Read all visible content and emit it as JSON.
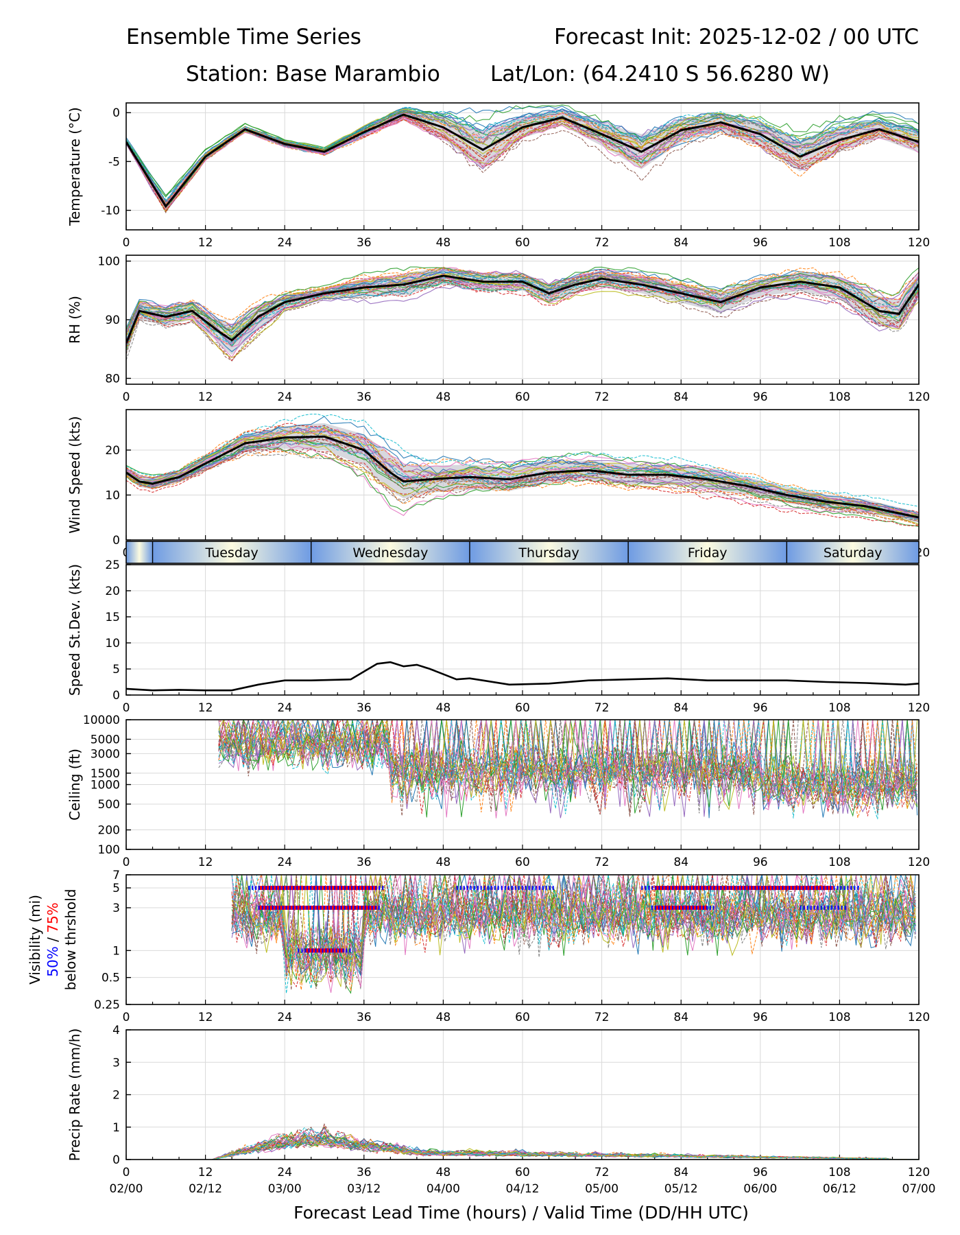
{
  "header": {
    "title": "Ensemble Time Series",
    "init": "Forecast Init: 2025-12-02 / 00 UTC",
    "station": "Station: Base Marambio",
    "latlon": "Lat/Lon: (64.2410 S 56.6280 W)"
  },
  "colors": {
    "mean": "#000000",
    "vis_50": "#0000ff",
    "vis_75": "#ff0000",
    "grid": "#d9d9d9",
    "spread": "#c8c8d0",
    "members": [
      "#1f77b4",
      "#ff7f0e",
      "#2ca02c",
      "#d62728",
      "#9467bd",
      "#8c564b",
      "#e377c2",
      "#7f7f7f",
      "#bcbd22",
      "#17becf"
    ]
  },
  "chart_data": [
    {
      "id": "temperature",
      "type": "line",
      "ylabel": "Temperature (°C)",
      "ylim": [
        -12,
        1
      ],
      "yticks": [
        0,
        -5,
        -10
      ],
      "x": [
        0,
        6,
        12,
        18,
        24,
        30,
        36,
        42,
        48,
        54,
        60,
        66,
        72,
        78,
        84,
        90,
        96,
        102,
        108,
        114,
        120
      ],
      "mean": [
        -3,
        -9.6,
        -4.5,
        -1.7,
        -3.2,
        -4,
        -2,
        -0.2,
        -1.5,
        -3.8,
        -1.5,
        -0.5,
        -2.2,
        -4,
        -1.8,
        -1,
        -2.2,
        -4.5,
        -2.8,
        -1.7,
        -3
      ],
      "spread": [
        0.2,
        0.6,
        0.4,
        0.3,
        0.3,
        0.3,
        0.5,
        0.6,
        1.2,
        2,
        1.1,
        0.8,
        1.2,
        1.8,
        1.2,
        0.9,
        1.2,
        1.5,
        1.2,
        0.9,
        1.1
      ],
      "members": 30
    },
    {
      "id": "rh",
      "type": "line",
      "ylabel": "RH (%)",
      "ylim": [
        79,
        101
      ],
      "yticks": [
        100,
        90,
        80
      ],
      "x": [
        0,
        2,
        6,
        10,
        14,
        16,
        20,
        24,
        30,
        36,
        42,
        48,
        54,
        60,
        64,
        68,
        72,
        78,
        84,
        90,
        96,
        102,
        108,
        114,
        117,
        120
      ],
      "mean": [
        86,
        91.5,
        90.5,
        91.5,
        88,
        86.5,
        90.5,
        93,
        94.5,
        95.5,
        96,
        97.5,
        96.5,
        96.5,
        94.5,
        96,
        97,
        96,
        94.5,
        93,
        95.5,
        96.5,
        95.5,
        91.5,
        91,
        96
      ],
      "spread": [
        2,
        1.5,
        1.5,
        1.5,
        2,
        2.5,
        2,
        1.2,
        0.8,
        1.5,
        1.8,
        1.5,
        1.5,
        1.5,
        1.6,
        1.5,
        1.4,
        1.5,
        1.6,
        1.8,
        1.5,
        1.6,
        1.8,
        2.5,
        2.5,
        2
      ],
      "members": 30
    },
    {
      "id": "wind",
      "type": "line",
      "ylabel": "Wind Speed (kts)",
      "ylim": [
        0,
        29
      ],
      "yticks": [
        20,
        10,
        0
      ],
      "x": [
        0,
        2,
        4,
        8,
        12,
        18,
        24,
        30,
        36,
        40,
        42,
        46,
        52,
        58,
        64,
        70,
        76,
        82,
        88,
        94,
        100,
        106,
        112,
        120
      ],
      "mean": [
        15,
        13,
        12.5,
        14,
        17,
        21.5,
        22.8,
        23,
        20,
        15,
        13,
        13.5,
        14,
        13.5,
        15,
        15.5,
        14.5,
        14.5,
        13.5,
        12,
        10,
        8.5,
        7.5,
        5
      ],
      "spread": [
        1,
        1.2,
        1.2,
        1.2,
        1.5,
        2,
        2.5,
        3,
        3.5,
        4,
        3.8,
        3,
        2.8,
        2.6,
        2.4,
        2.2,
        2.2,
        2.2,
        2.2,
        2,
        1.8,
        1.6,
        1.5,
        1.2
      ],
      "members": 30
    },
    {
      "id": "speed_stdev",
      "type": "line",
      "ylabel": "Speed St.Dev. (kts)",
      "ylim": [
        0,
        25
      ],
      "yticks": [
        25,
        20,
        15,
        10,
        5,
        0
      ],
      "x": [
        0,
        4,
        8,
        12,
        16,
        20,
        24,
        28,
        34,
        36,
        38,
        40,
        42,
        44,
        46,
        48,
        50,
        52,
        54,
        58,
        64,
        70,
        76,
        82,
        88,
        94,
        100,
        106,
        112,
        118,
        120
      ],
      "values": [
        1.2,
        0.9,
        1.0,
        0.9,
        0.9,
        2,
        2.8,
        2.8,
        3,
        4.5,
        6,
        6.3,
        5.5,
        5.8,
        5,
        4,
        3,
        3.2,
        2.8,
        2,
        2.2,
        2.8,
        3,
        3.2,
        2.8,
        2.8,
        2.8,
        2.5,
        2.3,
        2,
        2.2
      ]
    },
    {
      "id": "ceiling",
      "type": "line",
      "scale": "log",
      "ylabel": "Ceiling (ft)",
      "ylim": [
        100,
        10000
      ],
      "yticks": [
        10000,
        5000,
        3000,
        1500,
        1000,
        500,
        200,
        100
      ],
      "members": 30
    },
    {
      "id": "visibility",
      "type": "line",
      "ylabel_parts": [
        "Visibility (mi)",
        "50%",
        " / ",
        "75%",
        "below thrshold"
      ],
      "ylim": [
        0.25,
        7
      ],
      "yticks": [
        7,
        5,
        3,
        1,
        0.5,
        0.25
      ],
      "tick_labels": [
        "7",
        "5",
        "3",
        "1",
        "0.5",
        "0.25"
      ],
      "threshold_50": [
        {
          "level": 5,
          "start": 18.5,
          "end": 39
        },
        {
          "level": 5,
          "start": 50,
          "end": 65
        },
        {
          "level": 5,
          "start": 78,
          "end": 111
        },
        {
          "level": 3,
          "start": 20,
          "end": 38.5
        },
        {
          "level": 3,
          "start": 79.5,
          "end": 89
        },
        {
          "level": 3,
          "start": 102,
          "end": 109
        },
        {
          "level": 1,
          "start": 26,
          "end": 34
        }
      ],
      "threshold_75": [
        {
          "level": 5,
          "start": 20,
          "end": 38
        },
        {
          "level": 5,
          "start": 80,
          "end": 107
        },
        {
          "level": 3,
          "start": 20,
          "end": 38
        },
        {
          "level": 3,
          "start": 80,
          "end": 88
        },
        {
          "level": 1,
          "start": 27,
          "end": 33
        }
      ],
      "members": 30
    },
    {
      "id": "precip",
      "type": "line",
      "ylabel": "Precip Rate (mm/h)",
      "ylim": [
        0,
        4
      ],
      "yticks": [
        4,
        3,
        2,
        1,
        0
      ],
      "members": 30
    }
  ],
  "days": [
    "Tuesday",
    "Wednesday",
    "Thursday",
    "Friday",
    "Saturday"
  ],
  "x_axis": {
    "lead_ticks": [
      "0",
      "12",
      "24",
      "36",
      "48",
      "60",
      "72",
      "84",
      "96",
      "108",
      "120"
    ],
    "valid_ticks": [
      "02/00",
      "02/12",
      "03/00",
      "03/12",
      "04/00",
      "04/12",
      "05/00",
      "05/12",
      "06/00",
      "06/12",
      "07/00"
    ],
    "label": "Forecast Lead Time (hours) / Valid Time (DD/HH UTC)"
  }
}
